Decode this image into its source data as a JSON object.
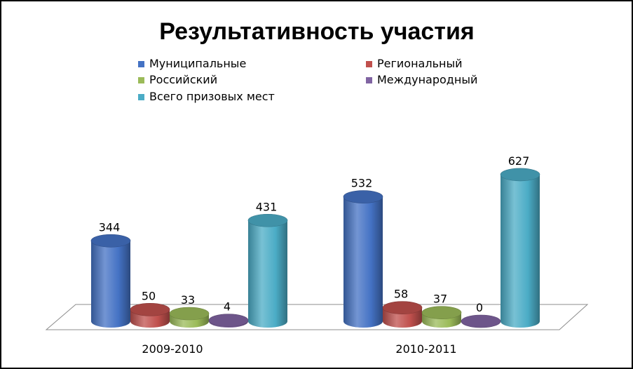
{
  "chart_data": {
    "type": "bar",
    "title": "Результативность участия",
    "categories": [
      "2009-2010",
      "2010-2011"
    ],
    "series": [
      {
        "name": "Муниципальные",
        "values": [
          344,
          532
        ],
        "color": "#4472C4"
      },
      {
        "name": "Региональный",
        "values": [
          50,
          58
        ],
        "color": "#C0504D"
      },
      {
        "name": "Российский",
        "values": [
          33,
          37
        ],
        "color": "#9BBB59"
      },
      {
        "name": "Международный",
        "values": [
          4,
          0
        ],
        "color": "#8064A2"
      },
      {
        "name": "Всего призовых мест",
        "values": [
          431,
          627
        ],
        "color": "#4BACC6"
      }
    ],
    "ylim": [
      0,
      700
    ],
    "grid": false,
    "legend": "top",
    "style": "3d-cylinder"
  }
}
